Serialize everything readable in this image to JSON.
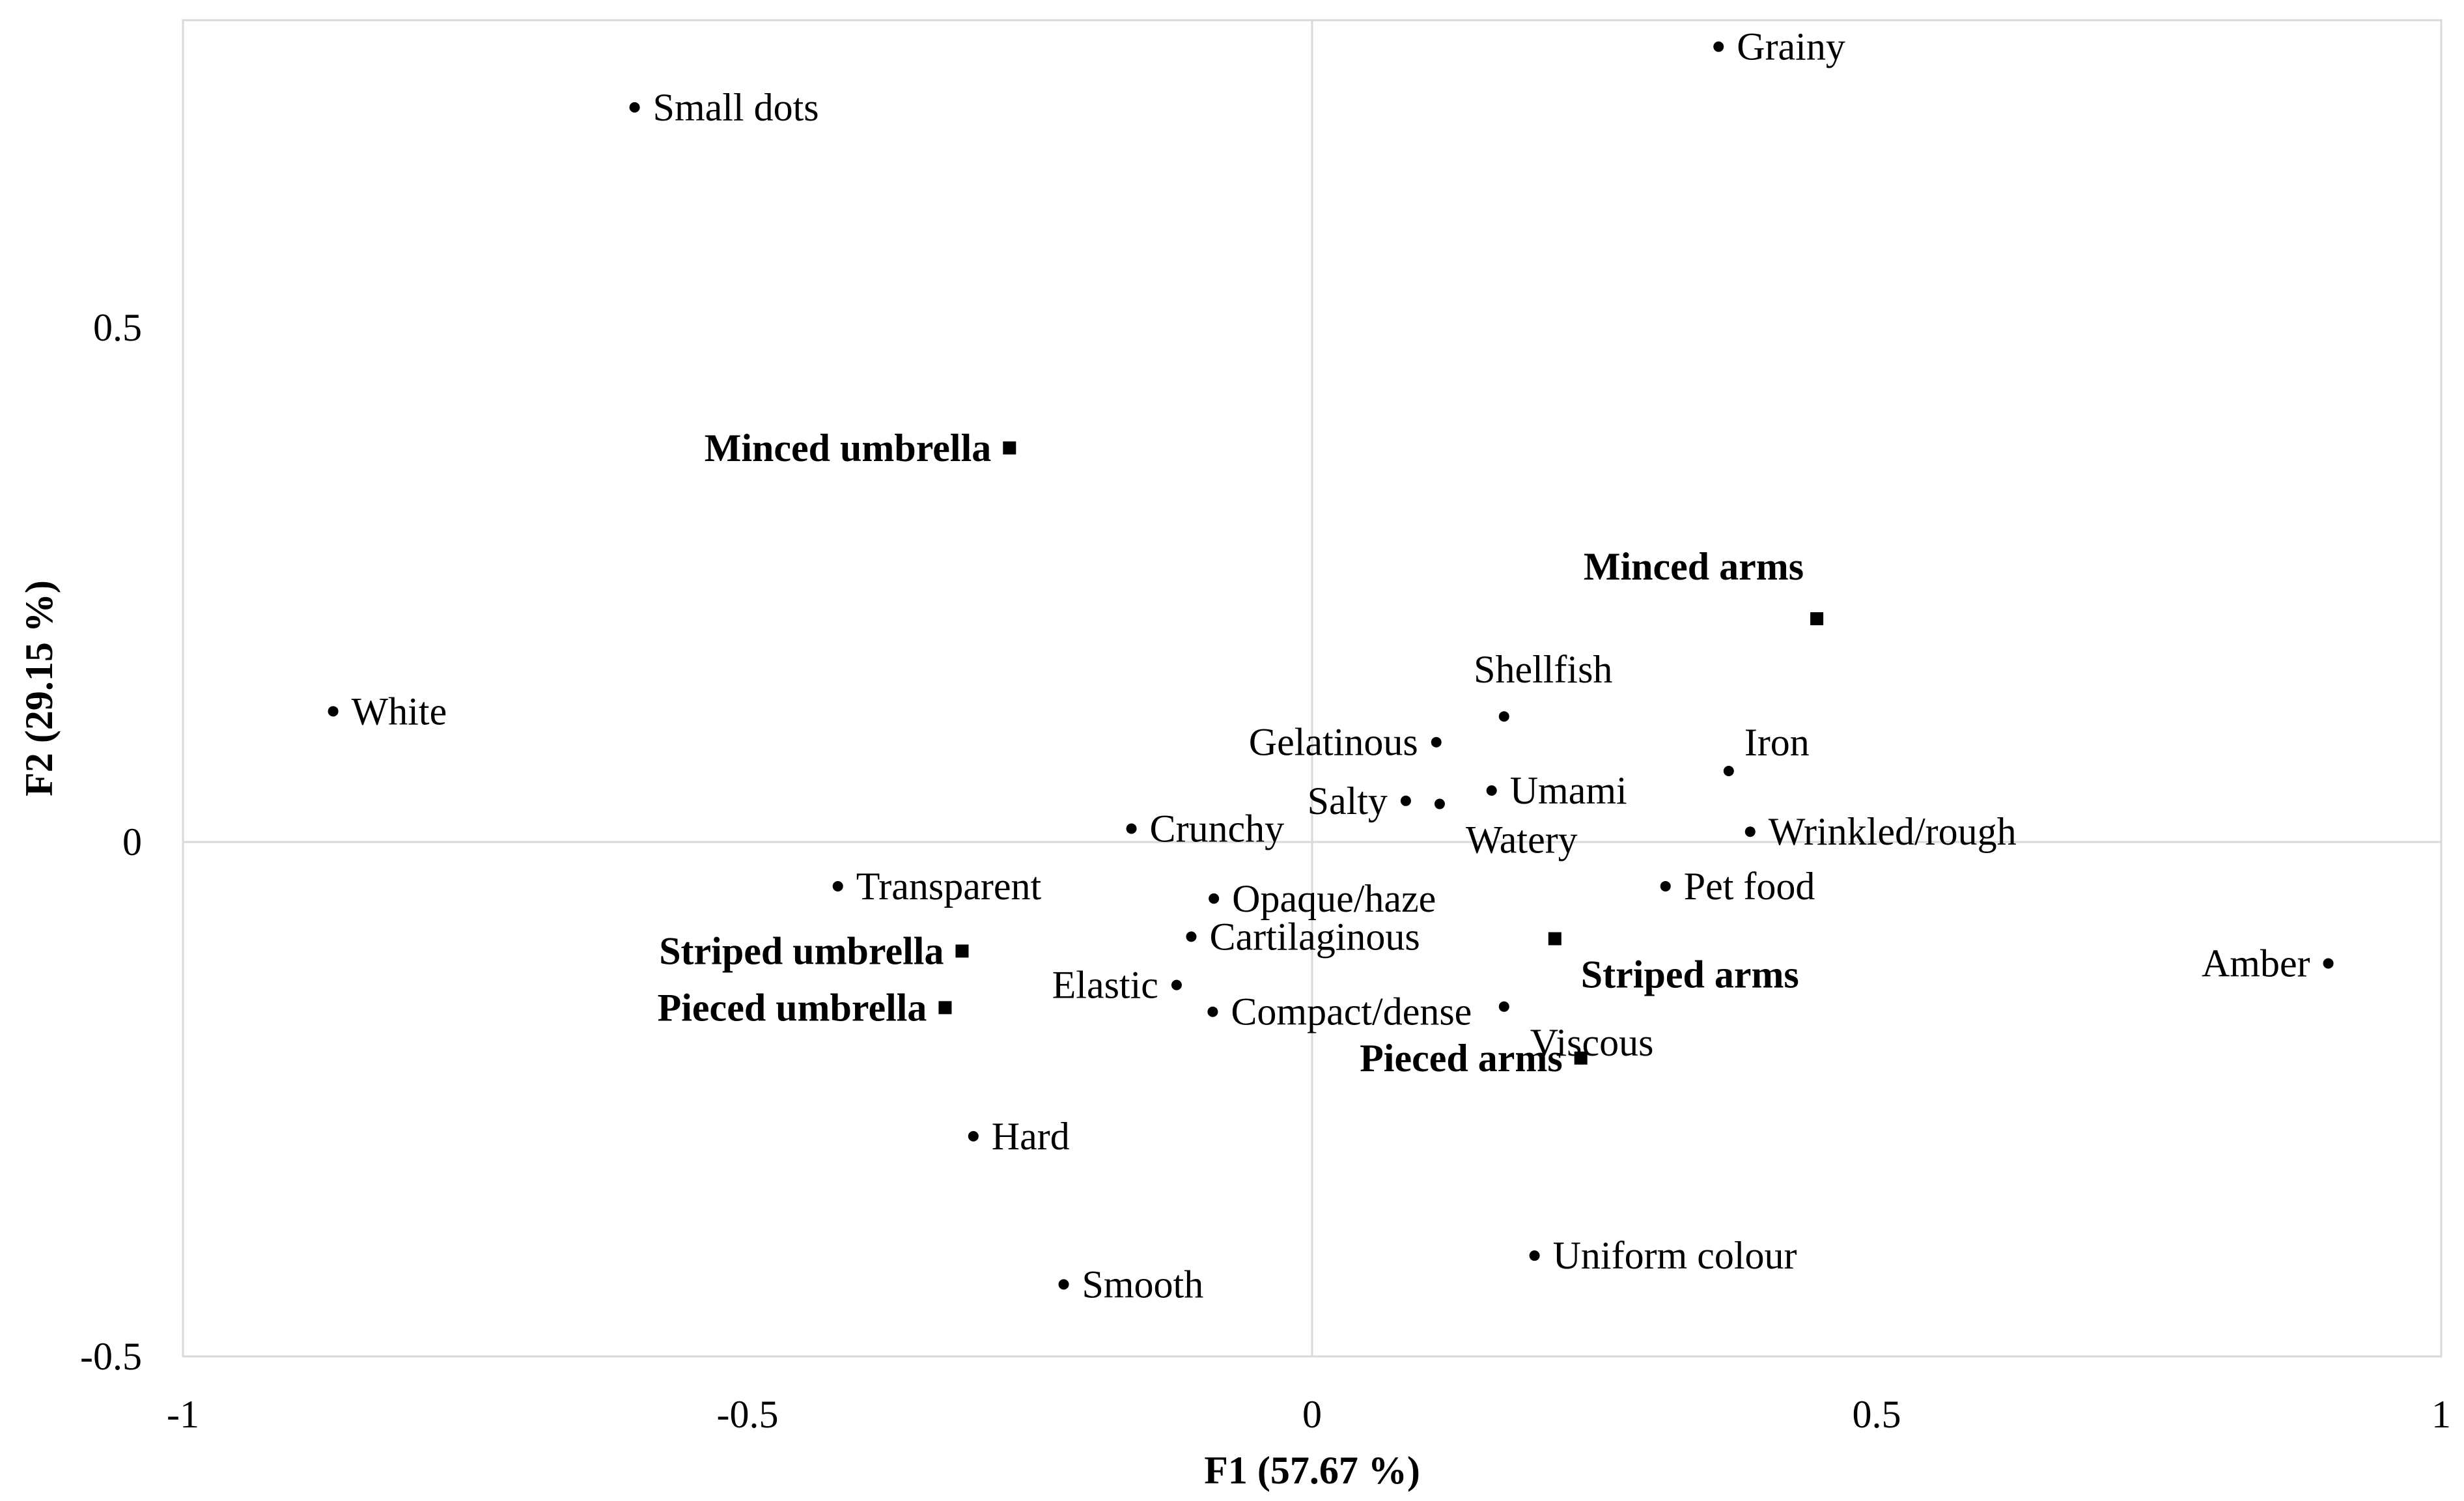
{
  "chart_data": {
    "type": "scatter",
    "xlabel": "F1 (57.67 %)",
    "ylabel": "F2 (29.15 %)",
    "xlim": [
      -1,
      1
    ],
    "ylim": [
      -0.5,
      0.8
    ],
    "x_ticks": [
      {
        "value": -1,
        "label": "-1"
      },
      {
        "value": -0.5,
        "label": "-0.5"
      },
      {
        "value": 0,
        "label": "0"
      },
      {
        "value": 0.5,
        "label": "0.5"
      },
      {
        "value": 1,
        "label": "1"
      }
    ],
    "y_ticks": [
      {
        "value": -0.5,
        "label": "-0.5"
      },
      {
        "value": 0,
        "label": "0"
      },
      {
        "value": 0.5,
        "label": "0.5"
      }
    ],
    "grid": "zero-lines only",
    "legend": "none",
    "colors": {
      "points": "#000000",
      "axis_lines": "#d9d9d9",
      "frame": "#d9d9d9"
    },
    "series": [
      {
        "marker": "dot",
        "points": [
          {
            "label": "Grainy",
            "x": 0.36,
            "y": 0.773,
            "pos": "right"
          },
          {
            "label": "Small dots",
            "x": -0.6,
            "y": 0.714,
            "pos": "right"
          },
          {
            "label": "White",
            "x": -0.867,
            "y": 0.127,
            "pos": "right"
          },
          {
            "label": "Shellfish",
            "x": 0.17,
            "y": 0.122,
            "pos": "above"
          },
          {
            "label": "Gelatinous",
            "x": 0.11,
            "y": 0.097,
            "pos": "left"
          },
          {
            "label": "Iron",
            "x": 0.369,
            "y": 0.069,
            "pos": "above-right"
          },
          {
            "label": "Umami",
            "x": 0.159,
            "y": 0.05,
            "pos": "right"
          },
          {
            "label": "Salty",
            "x": 0.083,
            "y": 0.04,
            "pos": "left"
          },
          {
            "label": "Watery",
            "x": 0.113,
            "y": 0.037,
            "pos": "below-right"
          },
          {
            "label": "Wrinkled/rough",
            "x": 0.388,
            "y": 0.01,
            "pos": "right"
          },
          {
            "label": "Crunchy",
            "x": -0.16,
            "y": 0.013,
            "pos": "right"
          },
          {
            "label": "Transparent",
            "x": -0.42,
            "y": -0.043,
            "pos": "right"
          },
          {
            "label": "Opaque/haze",
            "x": -0.087,
            "y": -0.055,
            "pos": "right"
          },
          {
            "label": "Pet food",
            "x": 0.313,
            "y": -0.043,
            "pos": "right"
          },
          {
            "label": "Cartilaginous",
            "x": -0.107,
            "y": -0.092,
            "pos": "right"
          },
          {
            "label": "Amber",
            "x": 0.9,
            "y": -0.118,
            "pos": "left"
          },
          {
            "label": "Elastic",
            "x": -0.12,
            "y": -0.139,
            "pos": "left"
          },
          {
            "label": "Compact/dense",
            "x": -0.088,
            "y": -0.165,
            "pos": "right"
          },
          {
            "label": "Viscous",
            "x": 0.17,
            "y": -0.16,
            "pos": "below-right"
          },
          {
            "label": "Hard",
            "x": -0.3,
            "y": -0.286,
            "pos": "right"
          },
          {
            "label": "Uniform colour",
            "x": 0.197,
            "y": -0.402,
            "pos": "right"
          },
          {
            "label": "Smooth",
            "x": -0.22,
            "y": -0.43,
            "pos": "right"
          }
        ]
      },
      {
        "marker": "square",
        "bold": true,
        "points": [
          {
            "label": "Minced umbrella",
            "x": -0.268,
            "y": 0.383,
            "pos": "left"
          },
          {
            "label": "Minced arms",
            "x": 0.447,
            "y": 0.217,
            "pos": "above-left"
          },
          {
            "label": "Striped umbrella",
            "x": -0.31,
            "y": -0.106,
            "pos": "left"
          },
          {
            "label": "Striped arms",
            "x": 0.215,
            "y": -0.094,
            "pos": "below-right"
          },
          {
            "label": "Pieced umbrella",
            "x": -0.325,
            "y": -0.161,
            "pos": "left"
          },
          {
            "label": "Pieced arms",
            "x": 0.238,
            "y": -0.21,
            "pos": "left"
          }
        ]
      }
    ]
  }
}
